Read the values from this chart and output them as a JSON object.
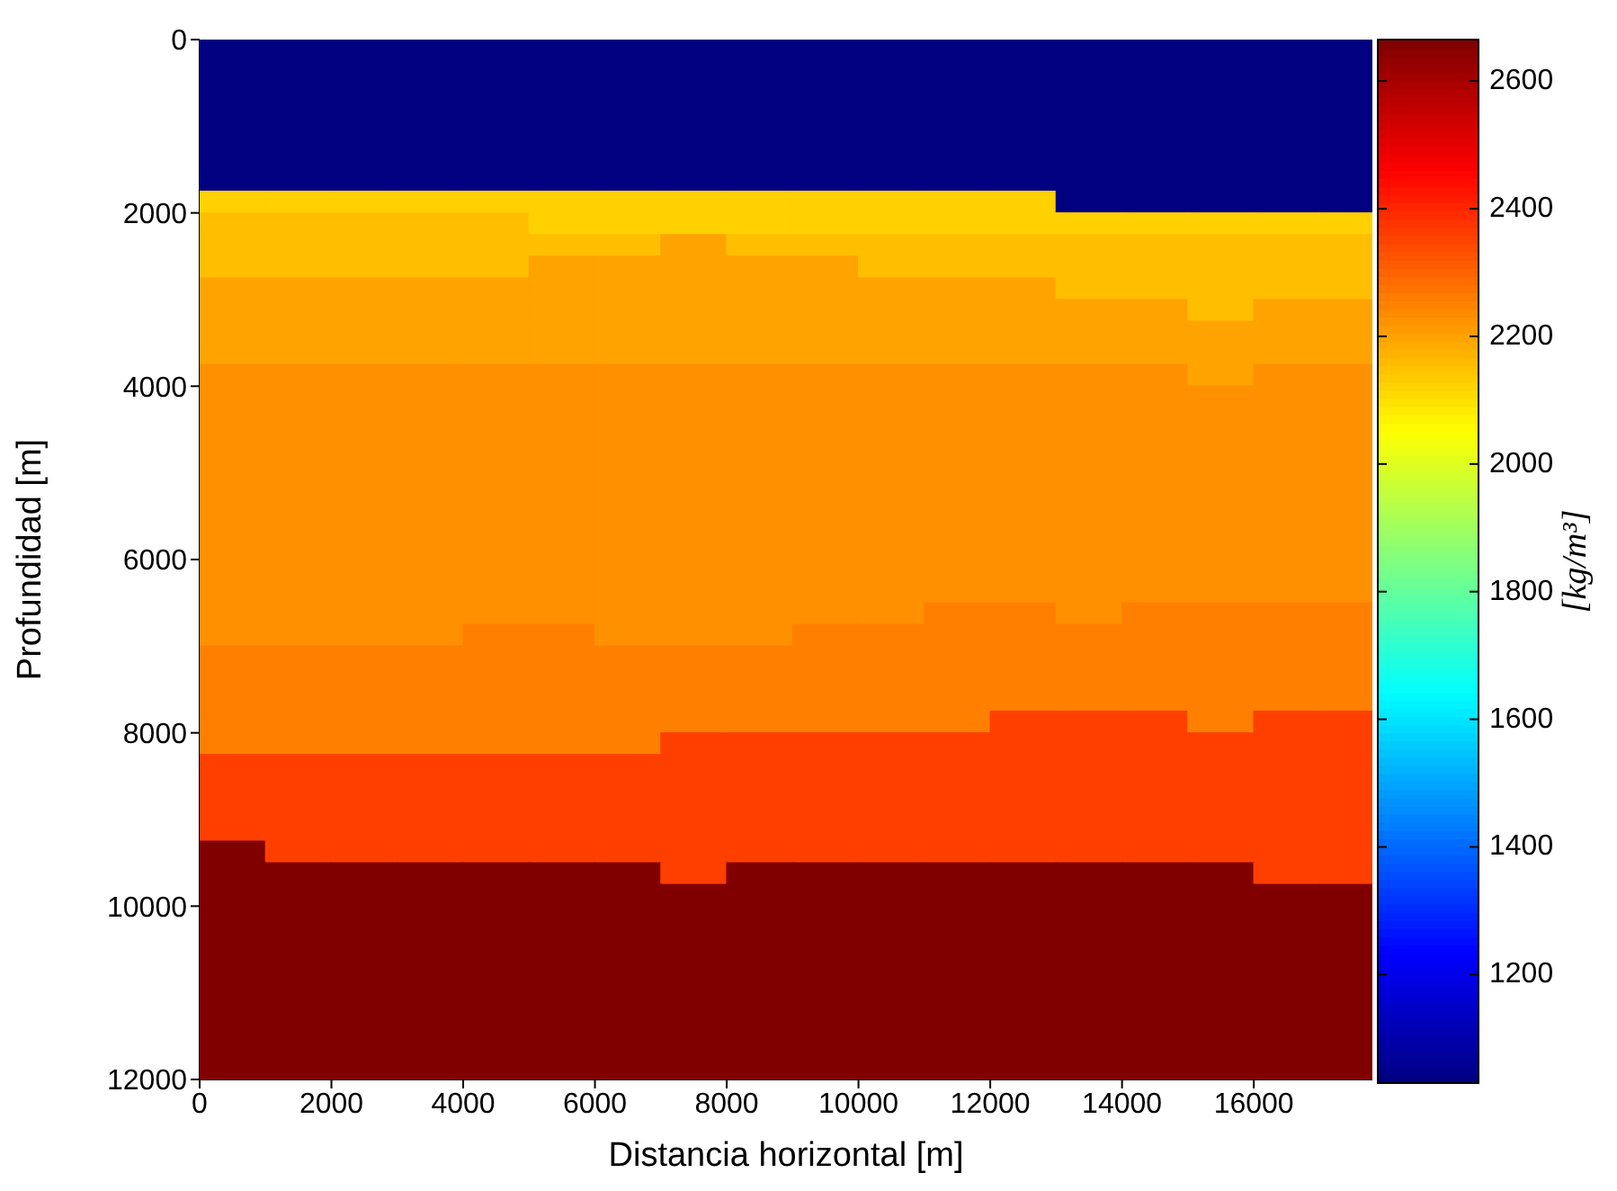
{
  "chart_data": {
    "type": "heatmap",
    "xlabel": "Distancia horizontal [m]",
    "ylabel": "Profundidad [m]",
    "clabel": "[kg/m³]",
    "x": [
      500,
      1500,
      2500,
      3500,
      4500,
      5500,
      6500,
      7500,
      8500,
      9500,
      10500,
      11500,
      12500,
      13500,
      14500,
      15500,
      16500,
      17500
    ],
    "y": [
      125,
      375,
      625,
      875,
      1125,
      1375,
      1625,
      1875,
      2125,
      2375,
      2625,
      2875,
      3125,
      3375,
      3625,
      3875,
      4125,
      4375,
      4625,
      4875,
      5125,
      5375,
      5625,
      5875,
      6125,
      6375,
      6625,
      6875,
      7125,
      7375,
      7625,
      7875,
      8125,
      8375,
      8625,
      8875,
      9125,
      9375,
      9625,
      9875,
      10125,
      10375,
      10625,
      10875,
      11125,
      11375,
      11625,
      11875
    ],
    "xlim": [
      0,
      17800
    ],
    "xticks": [
      0,
      2000,
      4000,
      6000,
      8000,
      10000,
      12000,
      14000,
      16000
    ],
    "ylim": [
      12000,
      0
    ],
    "yticks": [
      0,
      2000,
      4000,
      6000,
      8000,
      10000,
      12000
    ],
    "clim": [
      1030,
      2665
    ],
    "cticks": [
      1200,
      1400,
      1600,
      1800,
      2000,
      2200,
      2400,
      2600
    ],
    "cells": [
      [
        1030,
        1030,
        1030,
        1030,
        1030,
        1030,
        1030,
        1030,
        1030,
        1030,
        1030,
        1030,
        1030,
        1030,
        1030,
        1030,
        1030,
        1030
      ],
      [
        1030,
        1030,
        1030,
        1030,
        1030,
        1030,
        1030,
        1030,
        1030,
        1030,
        1030,
        1030,
        1030,
        1030,
        1030,
        1030,
        1030,
        1030
      ],
      [
        1030,
        1030,
        1030,
        1030,
        1030,
        1030,
        1030,
        1030,
        1030,
        1030,
        1030,
        1030,
        1030,
        1030,
        1030,
        1030,
        1030,
        1030
      ],
      [
        1030,
        1030,
        1030,
        1030,
        1030,
        1030,
        1030,
        1030,
        1030,
        1030,
        1030,
        1030,
        1030,
        1030,
        1030,
        1030,
        1030,
        1030
      ],
      [
        1030,
        1030,
        1030,
        1030,
        1030,
        1030,
        1030,
        1030,
        1030,
        1030,
        1030,
        1030,
        1030,
        1030,
        1030,
        1030,
        1030,
        1030
      ],
      [
        1030,
        1030,
        1030,
        1030,
        1030,
        1030,
        1030,
        1030,
        1030,
        1030,
        1030,
        1030,
        1030,
        1030,
        1030,
        1030,
        1030,
        1030
      ],
      [
        1030,
        1030,
        1030,
        1030,
        1030,
        1030,
        1030,
        1030,
        1030,
        1030,
        1030,
        1030,
        1030,
        1030,
        1030,
        1030,
        1030,
        1030
      ],
      [
        2125,
        2125,
        2125,
        2125,
        2125,
        2125,
        2125,
        2125,
        2125,
        2125,
        2125,
        2125,
        2125,
        1030,
        1030,
        1030,
        1030,
        1030
      ],
      [
        2155,
        2155,
        2155,
        2155,
        2155,
        2125,
        2125,
        2125,
        2125,
        2125,
        2125,
        2125,
        2125,
        2125,
        2125,
        2125,
        2125,
        2125
      ],
      [
        2155,
        2155,
        2155,
        2155,
        2155,
        2155,
        2155,
        2200,
        2155,
        2155,
        2155,
        2155,
        2155,
        2155,
        2155,
        2155,
        2155,
        2155
      ],
      [
        2155,
        2155,
        2155,
        2155,
        2155,
        2200,
        2200,
        2200,
        2200,
        2200,
        2155,
        2155,
        2155,
        2155,
        2155,
        2155,
        2155,
        2155
      ],
      [
        2200,
        2200,
        2200,
        2200,
        2200,
        2200,
        2200,
        2200,
        2200,
        2200,
        2200,
        2200,
        2200,
        2155,
        2155,
        2155,
        2155,
        2155
      ],
      [
        2200,
        2200,
        2200,
        2200,
        2200,
        2200,
        2200,
        2200,
        2200,
        2200,
        2200,
        2200,
        2200,
        2200,
        2200,
        2155,
        2200,
        2200
      ],
      [
        2200,
        2200,
        2200,
        2200,
        2200,
        2200,
        2200,
        2200,
        2200,
        2200,
        2200,
        2200,
        2200,
        2200,
        2200,
        2200,
        2200,
        2200
      ],
      [
        2200,
        2200,
        2200,
        2200,
        2200,
        2200,
        2200,
        2200,
        2200,
        2200,
        2200,
        2200,
        2200,
        2200,
        2200,
        2200,
        2200,
        2200
      ],
      [
        2230,
        2230,
        2230,
        2230,
        2230,
        2230,
        2230,
        2230,
        2230,
        2230,
        2230,
        2230,
        2230,
        2230,
        2230,
        2200,
        2230,
        2230
      ],
      [
        2230,
        2230,
        2230,
        2230,
        2230,
        2230,
        2230,
        2230,
        2230,
        2230,
        2230,
        2230,
        2230,
        2230,
        2230,
        2230,
        2230,
        2230
      ],
      [
        2230,
        2230,
        2230,
        2230,
        2230,
        2230,
        2230,
        2230,
        2230,
        2230,
        2230,
        2230,
        2230,
        2230,
        2230,
        2230,
        2230,
        2230
      ],
      [
        2230,
        2230,
        2230,
        2230,
        2230,
        2230,
        2230,
        2230,
        2230,
        2230,
        2230,
        2230,
        2230,
        2230,
        2230,
        2230,
        2230,
        2230
      ],
      [
        2230,
        2230,
        2230,
        2230,
        2230,
        2230,
        2230,
        2230,
        2230,
        2230,
        2230,
        2230,
        2230,
        2230,
        2230,
        2230,
        2230,
        2230
      ],
      [
        2230,
        2230,
        2230,
        2230,
        2230,
        2230,
        2230,
        2230,
        2230,
        2230,
        2230,
        2230,
        2230,
        2230,
        2230,
        2230,
        2230,
        2230
      ],
      [
        2230,
        2230,
        2230,
        2230,
        2230,
        2230,
        2230,
        2230,
        2230,
        2230,
        2230,
        2230,
        2230,
        2230,
        2230,
        2230,
        2230,
        2230
      ],
      [
        2230,
        2230,
        2230,
        2230,
        2230,
        2230,
        2230,
        2230,
        2230,
        2230,
        2230,
        2230,
        2230,
        2230,
        2230,
        2230,
        2230,
        2230
      ],
      [
        2230,
        2230,
        2230,
        2230,
        2230,
        2230,
        2230,
        2230,
        2230,
        2230,
        2230,
        2230,
        2230,
        2230,
        2230,
        2230,
        2230,
        2230
      ],
      [
        2230,
        2230,
        2230,
        2230,
        2230,
        2230,
        2230,
        2230,
        2230,
        2230,
        2230,
        2230,
        2230,
        2230,
        2230,
        2230,
        2230,
        2230
      ],
      [
        2230,
        2230,
        2230,
        2230,
        2230,
        2230,
        2230,
        2230,
        2230,
        2230,
        2230,
        2230,
        2230,
        2230,
        2230,
        2230,
        2230,
        2230
      ],
      [
        2230,
        2230,
        2230,
        2230,
        2230,
        2230,
        2230,
        2230,
        2230,
        2230,
        2230,
        2255,
        2255,
        2230,
        2255,
        2255,
        2255,
        2255
      ],
      [
        2230,
        2230,
        2230,
        2230,
        2255,
        2255,
        2230,
        2230,
        2230,
        2255,
        2255,
        2255,
        2255,
        2255,
        2255,
        2255,
        2255,
        2255
      ],
      [
        2255,
        2255,
        2255,
        2255,
        2255,
        2255,
        2255,
        2255,
        2255,
        2255,
        2255,
        2255,
        2255,
        2255,
        2255,
        2255,
        2255,
        2255
      ],
      [
        2255,
        2255,
        2255,
        2255,
        2255,
        2255,
        2255,
        2255,
        2255,
        2255,
        2255,
        2255,
        2255,
        2255,
        2255,
        2255,
        2255,
        2255
      ],
      [
        2255,
        2255,
        2255,
        2255,
        2255,
        2255,
        2255,
        2255,
        2255,
        2255,
        2255,
        2255,
        2255,
        2255,
        2255,
        2255,
        2255,
        2255
      ],
      [
        2255,
        2255,
        2255,
        2255,
        2255,
        2255,
        2255,
        2255,
        2255,
        2255,
        2255,
        2255,
        2360,
        2360,
        2360,
        2255,
        2360,
        2360
      ],
      [
        2255,
        2255,
        2255,
        2255,
        2255,
        2255,
        2255,
        2360,
        2360,
        2360,
        2360,
        2360,
        2360,
        2360,
        2360,
        2360,
        2360,
        2360
      ],
      [
        2360,
        2360,
        2360,
        2360,
        2360,
        2360,
        2360,
        2360,
        2360,
        2360,
        2360,
        2360,
        2360,
        2360,
        2360,
        2360,
        2360,
        2360
      ],
      [
        2360,
        2360,
        2360,
        2360,
        2360,
        2360,
        2360,
        2360,
        2360,
        2360,
        2360,
        2360,
        2360,
        2360,
        2360,
        2360,
        2360,
        2360
      ],
      [
        2360,
        2360,
        2360,
        2360,
        2360,
        2360,
        2360,
        2360,
        2360,
        2360,
        2360,
        2360,
        2360,
        2360,
        2360,
        2360,
        2360,
        2360
      ],
      [
        2360,
        2360,
        2360,
        2360,
        2360,
        2360,
        2360,
        2360,
        2360,
        2360,
        2360,
        2360,
        2360,
        2360,
        2360,
        2360,
        2360,
        2360
      ],
      [
        2665,
        2360,
        2360,
        2360,
        2360,
        2360,
        2360,
        2360,
        2360,
        2360,
        2360,
        2360,
        2360,
        2360,
        2360,
        2360,
        2360,
        2360
      ],
      [
        2665,
        2665,
        2665,
        2665,
        2665,
        2665,
        2665,
        2360,
        2665,
        2665,
        2665,
        2665,
        2665,
        2665,
        2665,
        2665,
        2360,
        2360
      ],
      [
        2665,
        2665,
        2665,
        2665,
        2665,
        2665,
        2665,
        2665,
        2665,
        2665,
        2665,
        2665,
        2665,
        2665,
        2665,
        2665,
        2665,
        2665
      ],
      [
        2665,
        2665,
        2665,
        2665,
        2665,
        2665,
        2665,
        2665,
        2665,
        2665,
        2665,
        2665,
        2665,
        2665,
        2665,
        2665,
        2665,
        2665
      ],
      [
        2665,
        2665,
        2665,
        2665,
        2665,
        2665,
        2665,
        2665,
        2665,
        2665,
        2665,
        2665,
        2665,
        2665,
        2665,
        2665,
        2665,
        2665
      ],
      [
        2665,
        2665,
        2665,
        2665,
        2665,
        2665,
        2665,
        2665,
        2665,
        2665,
        2665,
        2665,
        2665,
        2665,
        2665,
        2665,
        2665,
        2665
      ],
      [
        2665,
        2665,
        2665,
        2665,
        2665,
        2665,
        2665,
        2665,
        2665,
        2665,
        2665,
        2665,
        2665,
        2665,
        2665,
        2665,
        2665,
        2665
      ],
      [
        2665,
        2665,
        2665,
        2665,
        2665,
        2665,
        2665,
        2665,
        2665,
        2665,
        2665,
        2665,
        2665,
        2665,
        2665,
        2665,
        2665,
        2665
      ],
      [
        2665,
        2665,
        2665,
        2665,
        2665,
        2665,
        2665,
        2665,
        2665,
        2665,
        2665,
        2665,
        2665,
        2665,
        2665,
        2665,
        2665,
        2665
      ],
      [
        2665,
        2665,
        2665,
        2665,
        2665,
        2665,
        2665,
        2665,
        2665,
        2665,
        2665,
        2665,
        2665,
        2665,
        2665,
        2665,
        2665,
        2665
      ],
      [
        2665,
        2665,
        2665,
        2665,
        2665,
        2665,
        2665,
        2665,
        2665,
        2665,
        2665,
        2665,
        2665,
        2665,
        2665,
        2665,
        2665,
        2665
      ]
    ]
  }
}
